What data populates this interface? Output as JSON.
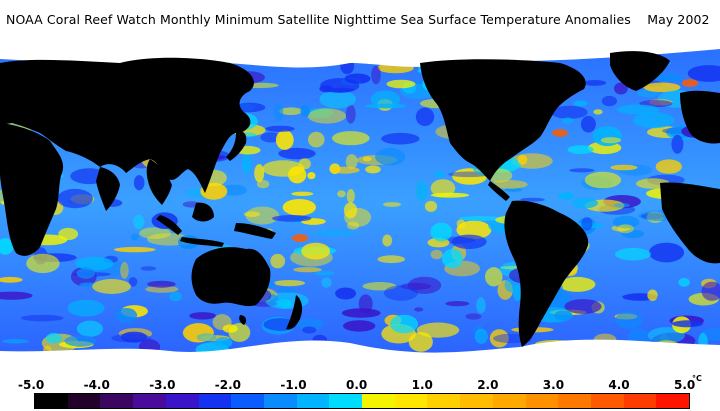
{
  "title": "NOAA Coral Reef Watch Monthly Minimum Satellite Nighttime Sea Surface Temperature Anomalies",
  "date": "May 2002",
  "legend": {
    "unit": "°C",
    "ticks": [
      "-5.0",
      "-4.0",
      "-3.0",
      "-2.0",
      "-1.0",
      "0.0",
      "1.0",
      "2.0",
      "3.0",
      "4.0",
      "5.0"
    ],
    "colors": [
      "#000000",
      "#23002a",
      "#3a0660",
      "#4a0a9a",
      "#3a14c8",
      "#1432f0",
      "#0a5cff",
      "#0a8cff",
      "#00b4ff",
      "#00dcff",
      "#f4f400",
      "#ffe600",
      "#ffd000",
      "#ffbc00",
      "#ffa800",
      "#ff9000",
      "#ff7800",
      "#ff5a00",
      "#ff3c00",
      "#ff1400"
    ]
  },
  "colors": {
    "land": "#000000",
    "ice": "#ffffff",
    "ocean_base": "#2f8cff"
  }
}
